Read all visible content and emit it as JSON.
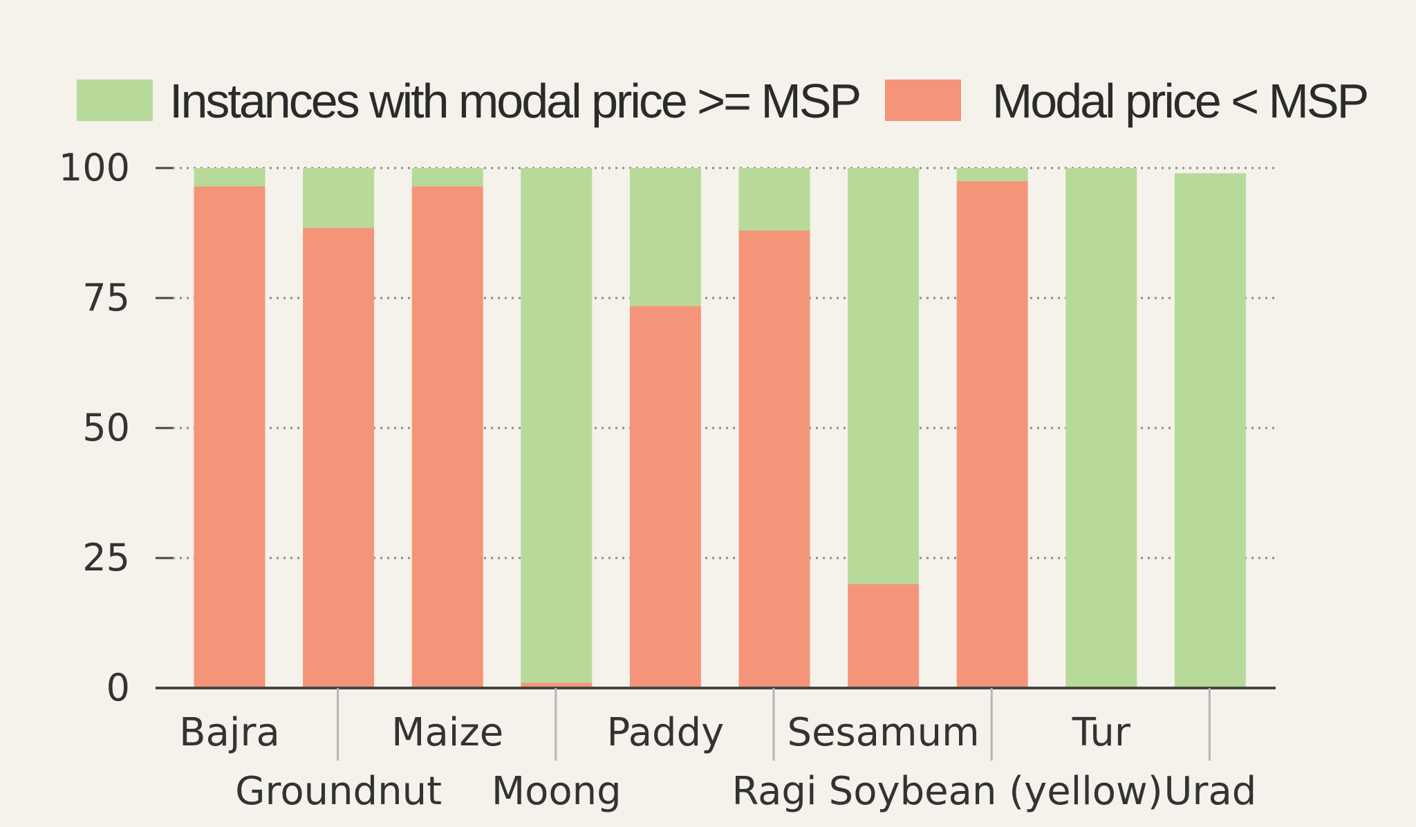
{
  "chart_data": {
    "type": "bar",
    "stacked": true,
    "categories": [
      "Bajra",
      "Groundnut",
      "Maize",
      "Moong",
      "Paddy",
      "Ragi",
      "Sesamum",
      "Soybean (yellow)",
      "Tur",
      "Urad"
    ],
    "series": [
      {
        "name": "Modal price < MSP",
        "color": "#f4957a",
        "values": [
          96.5,
          88.5,
          96.5,
          1,
          73.5,
          88,
          20,
          97.5,
          0.3,
          0
        ]
      },
      {
        "name": "Instances with modal price >= MSP",
        "color": "#b7da9a",
        "values": [
          3.5,
          11.5,
          3.5,
          99,
          26.5,
          12,
          80,
          2.5,
          99.7,
          99
        ]
      }
    ],
    "legend": [
      {
        "label": "Instances with modal price >= MSP",
        "color": "#b7da9a"
      },
      {
        "label": "Modal price < MSP",
        "color": "#f4957a"
      }
    ],
    "legend_position": "top",
    "yticks": [
      "0",
      "25",
      "50",
      "75",
      "100"
    ],
    "ylim": [
      0,
      100
    ],
    "grid": "dotted horizontal"
  }
}
